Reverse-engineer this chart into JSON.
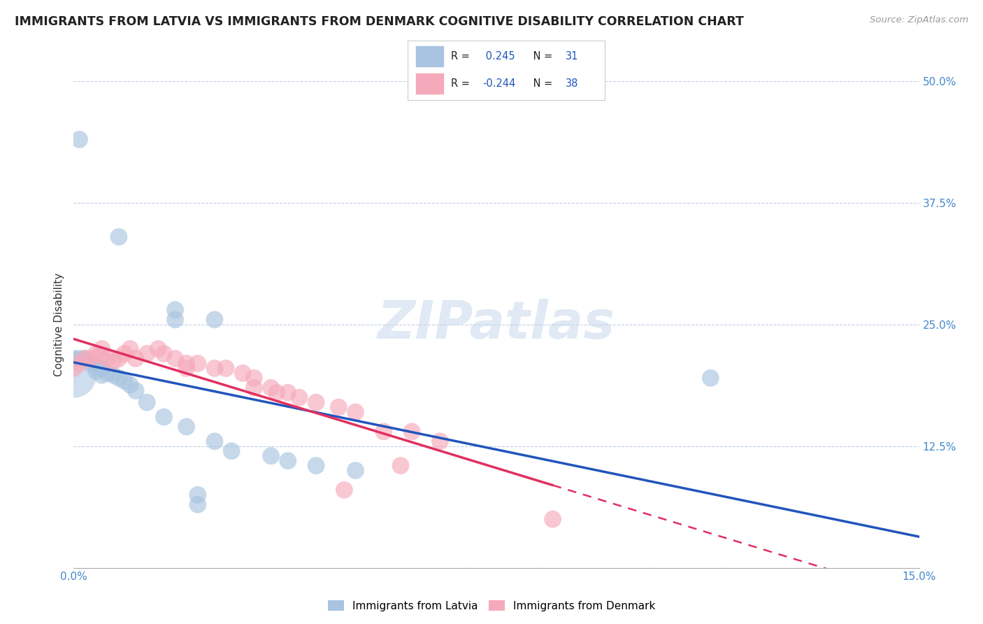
{
  "title": "IMMIGRANTS FROM LATVIA VS IMMIGRANTS FROM DENMARK COGNITIVE DISABILITY CORRELATION CHART",
  "source": "Source: ZipAtlas.com",
  "ylabel": "Cognitive Disability",
  "xlim": [
    0.0,
    0.15
  ],
  "ylim": [
    0.0,
    0.5
  ],
  "x_ticks": [
    0.0,
    0.15
  ],
  "x_tick_labels": [
    "0.0%",
    "15.0%"
  ],
  "y_ticks": [
    0.0,
    0.125,
    0.25,
    0.375,
    0.5
  ],
  "y_tick_labels": [
    "",
    "12.5%",
    "25.0%",
    "37.5%",
    "50.0%"
  ],
  "latvia_R": "0.245",
  "latvia_N": "31",
  "denmark_R": "-0.244",
  "denmark_N": "38",
  "latvia_color": "#a8c4e0",
  "denmark_color": "#f5aabb",
  "latvia_line_color": "#2255bb",
  "denmark_line_color": "#e03060",
  "watermark_text": "ZIPatlas",
  "latvia_points": [
    [
      0.001,
      0.44
    ],
    [
      0.008,
      0.34
    ],
    [
      0.018,
      0.255
    ],
    [
      0.018,
      0.265
    ],
    [
      0.025,
      0.255
    ],
    [
      0.0,
      0.215
    ],
    [
      0.001,
      0.215
    ],
    [
      0.002,
      0.215
    ],
    [
      0.003,
      0.21
    ],
    [
      0.004,
      0.208
    ],
    [
      0.004,
      0.202
    ],
    [
      0.005,
      0.205
    ],
    [
      0.005,
      0.198
    ],
    [
      0.006,
      0.2
    ],
    [
      0.007,
      0.198
    ],
    [
      0.008,
      0.195
    ],
    [
      0.009,
      0.192
    ],
    [
      0.01,
      0.188
    ],
    [
      0.011,
      0.182
    ],
    [
      0.013,
      0.17
    ],
    [
      0.016,
      0.155
    ],
    [
      0.02,
      0.145
    ],
    [
      0.025,
      0.13
    ],
    [
      0.028,
      0.12
    ],
    [
      0.035,
      0.115
    ],
    [
      0.038,
      0.11
    ],
    [
      0.043,
      0.105
    ],
    [
      0.05,
      0.1
    ],
    [
      0.022,
      0.075
    ],
    [
      0.022,
      0.065
    ],
    [
      0.113,
      0.195
    ]
  ],
  "latvia_large_point": [
    0.0,
    0.198
  ],
  "latvia_large_size": 2200,
  "denmark_points": [
    [
      0.0,
      0.205
    ],
    [
      0.001,
      0.21
    ],
    [
      0.002,
      0.215
    ],
    [
      0.003,
      0.215
    ],
    [
      0.004,
      0.22
    ],
    [
      0.005,
      0.225
    ],
    [
      0.005,
      0.218
    ],
    [
      0.006,
      0.215
    ],
    [
      0.007,
      0.212
    ],
    [
      0.008,
      0.215
    ],
    [
      0.009,
      0.22
    ],
    [
      0.01,
      0.225
    ],
    [
      0.011,
      0.215
    ],
    [
      0.013,
      0.22
    ],
    [
      0.015,
      0.225
    ],
    [
      0.016,
      0.22
    ],
    [
      0.018,
      0.215
    ],
    [
      0.02,
      0.21
    ],
    [
      0.022,
      0.21
    ],
    [
      0.02,
      0.205
    ],
    [
      0.025,
      0.205
    ],
    [
      0.027,
      0.205
    ],
    [
      0.03,
      0.2
    ],
    [
      0.032,
      0.195
    ],
    [
      0.032,
      0.185
    ],
    [
      0.035,
      0.185
    ],
    [
      0.036,
      0.18
    ],
    [
      0.038,
      0.18
    ],
    [
      0.04,
      0.175
    ],
    [
      0.043,
      0.17
    ],
    [
      0.047,
      0.165
    ],
    [
      0.05,
      0.16
    ],
    [
      0.055,
      0.14
    ],
    [
      0.06,
      0.14
    ],
    [
      0.065,
      0.13
    ],
    [
      0.058,
      0.105
    ],
    [
      0.048,
      0.08
    ],
    [
      0.085,
      0.05
    ]
  ],
  "background_color": "#ffffff",
  "grid_color": "#c0cfe8",
  "legend_color_latvia": "#a8c4e0",
  "legend_color_denmark": "#f5aabb",
  "legend_R_color": "#2255bb"
}
